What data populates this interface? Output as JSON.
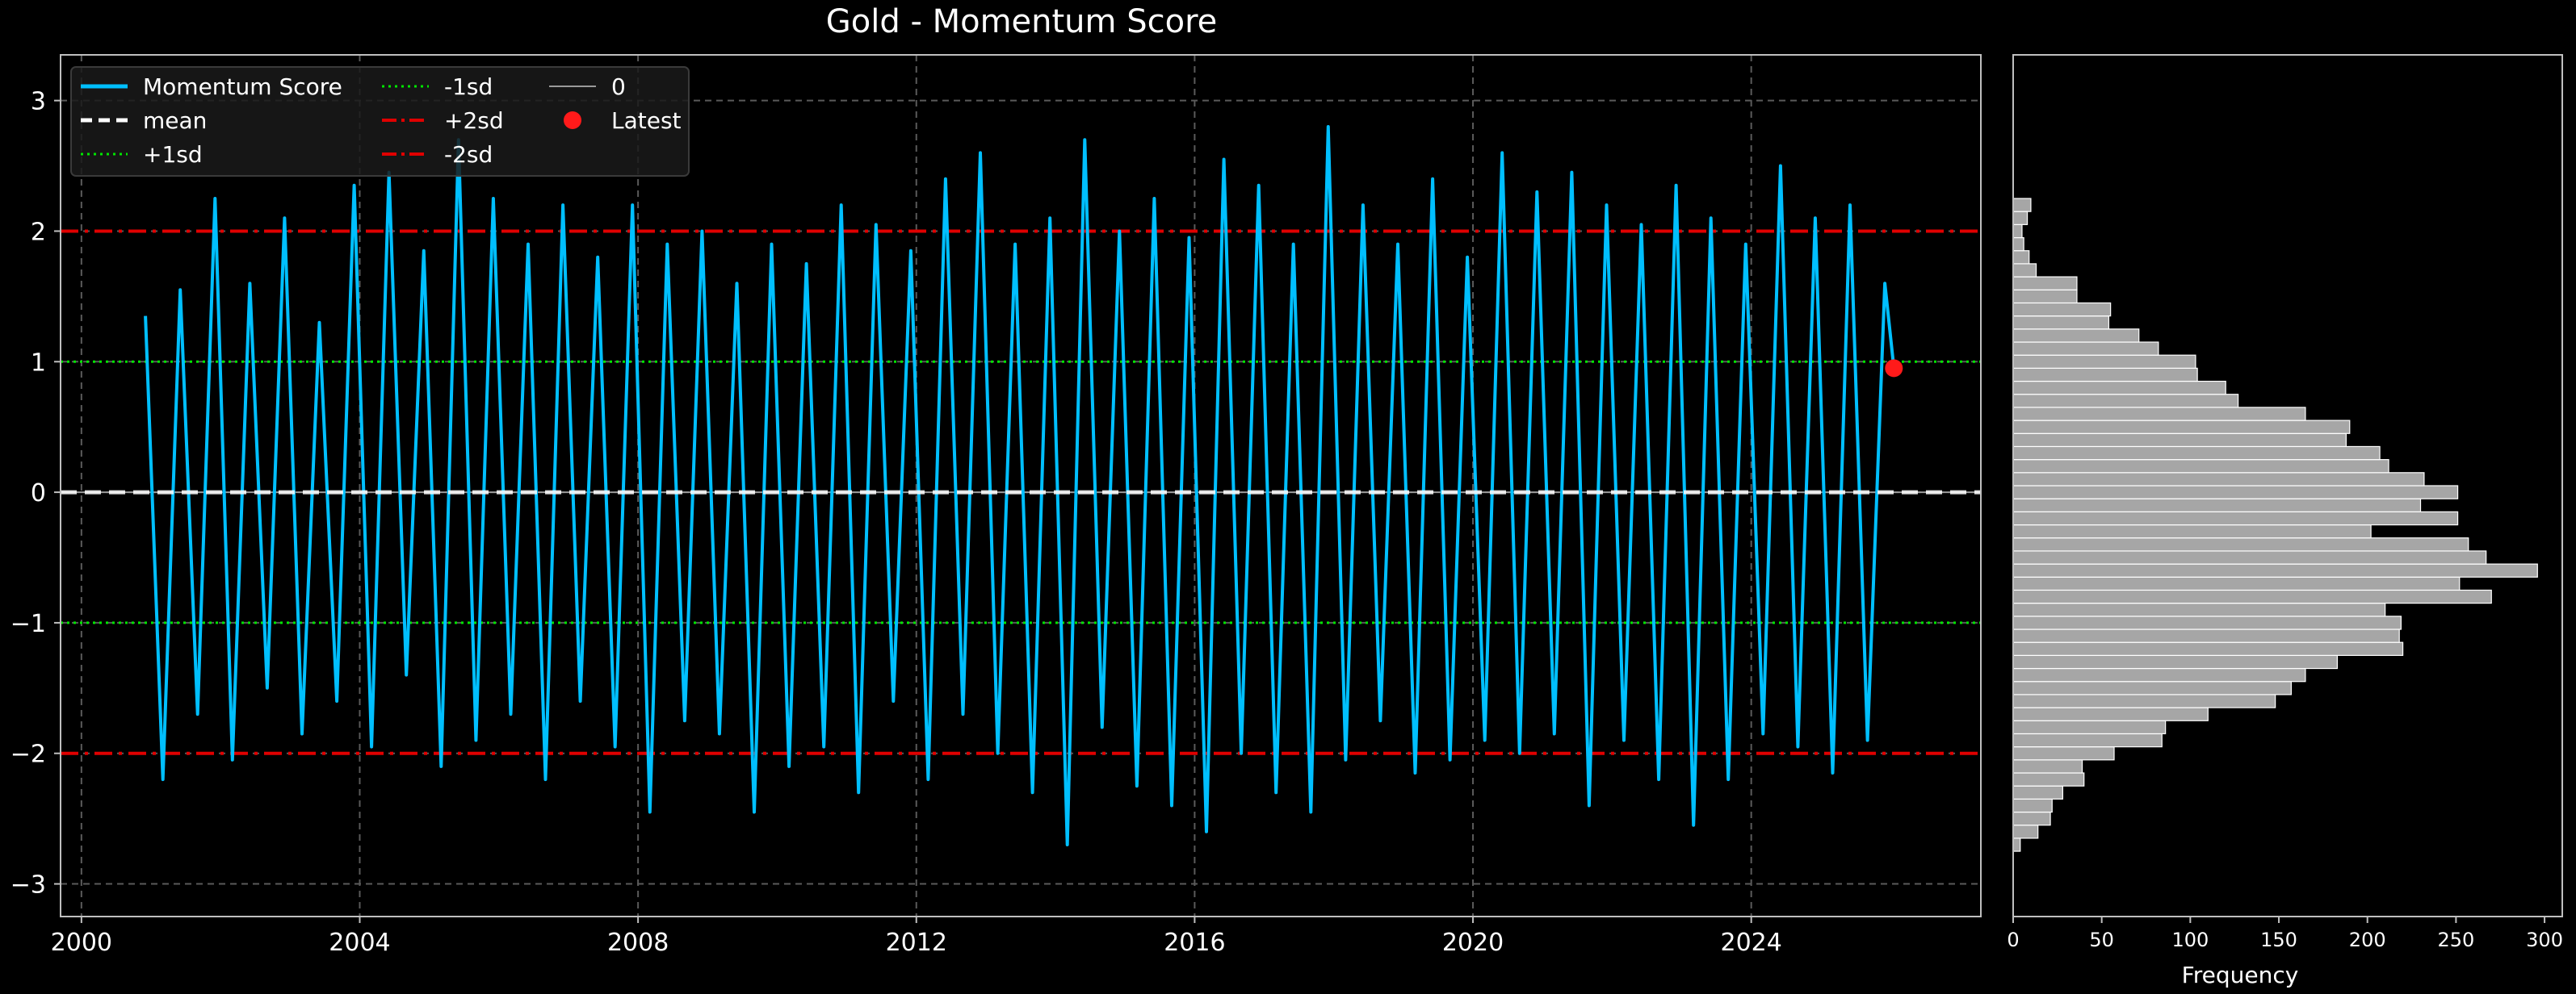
{
  "chart_data": [
    {
      "type": "line",
      "title": "Gold - Momentum Score",
      "xlabel": "",
      "ylabel": "",
      "xlim": [
        1999.7,
        2027.3
      ],
      "ylim": [
        -3.25,
        3.35
      ],
      "x_ticks": [
        2000,
        2004,
        2008,
        2012,
        2016,
        2020,
        2024
      ],
      "x_tick_labels": [
        "2000",
        "2004",
        "2008",
        "2012",
        "2016",
        "2020",
        "2024"
      ],
      "y_ticks": [
        -3,
        -2,
        -1,
        0,
        1,
        2,
        3
      ],
      "y_tick_labels": [
        "−3",
        "−2",
        "−1",
        "0",
        "1",
        "2",
        "3"
      ],
      "grid": true,
      "legend_position": "top-left",
      "legend": [
        "Momentum Score",
        "mean",
        "+1sd",
        "-1sd",
        "+2sd",
        "-2sd",
        "0",
        "Latest"
      ],
      "series": [
        {
          "name": "Momentum Score",
          "color": "#00bfff",
          "x": [
            2000.92,
            2001.17,
            2001.42,
            2001.67,
            2001.92,
            2002.17,
            2002.42,
            2002.67,
            2002.92,
            2003.17,
            2003.42,
            2003.67,
            2003.92,
            2004.17,
            2004.42,
            2004.67,
            2004.92,
            2005.17,
            2005.42,
            2005.67,
            2005.92,
            2006.17,
            2006.42,
            2006.67,
            2006.92,
            2007.17,
            2007.42,
            2007.67,
            2007.92,
            2008.17,
            2008.42,
            2008.67,
            2008.92,
            2009.17,
            2009.42,
            2009.67,
            2009.92,
            2010.17,
            2010.42,
            2010.67,
            2010.92,
            2011.17,
            2011.42,
            2011.67,
            2011.92,
            2012.17,
            2012.42,
            2012.67,
            2012.92,
            2013.17,
            2013.42,
            2013.67,
            2013.92,
            2014.17,
            2014.42,
            2014.67,
            2014.92,
            2015.17,
            2015.42,
            2015.67,
            2015.92,
            2016.17,
            2016.42,
            2016.67,
            2016.92,
            2017.17,
            2017.42,
            2017.67,
            2017.92,
            2018.17,
            2018.42,
            2018.67,
            2018.92,
            2019.17,
            2019.42,
            2019.67,
            2019.92,
            2020.17,
            2020.42,
            2020.67,
            2020.92,
            2021.17,
            2021.42,
            2021.67,
            2021.92,
            2022.17,
            2022.42,
            2022.67,
            2022.92,
            2023.17,
            2023.42,
            2023.67,
            2023.92,
            2024.17,
            2024.42,
            2024.67,
            2024.92,
            2025.17,
            2025.42,
            2025.67,
            2025.92,
            2026.05
          ],
          "y": [
            1.35,
            -2.2,
            1.55,
            -1.7,
            2.25,
            -2.05,
            1.6,
            -1.5,
            2.1,
            -1.85,
            1.3,
            -1.6,
            2.35,
            -1.95,
            2.45,
            -1.4,
            1.85,
            -2.1,
            2.7,
            -1.9,
            2.25,
            -1.7,
            1.9,
            -2.2,
            2.2,
            -1.6,
            1.8,
            -1.95,
            2.2,
            -2.45,
            1.9,
            -1.75,
            2.0,
            -1.85,
            1.6,
            -2.45,
            1.9,
            -2.1,
            1.75,
            -1.95,
            2.2,
            -2.3,
            2.05,
            -1.6,
            1.85,
            -2.2,
            2.4,
            -1.7,
            2.6,
            -2.0,
            1.9,
            -2.3,
            2.1,
            -2.7,
            2.7,
            -1.8,
            2.0,
            -2.25,
            2.25,
            -2.4,
            1.95,
            -2.6,
            2.55,
            -2.0,
            2.35,
            -2.3,
            1.9,
            -2.45,
            2.8,
            -2.05,
            2.2,
            -1.75,
            1.9,
            -2.15,
            2.4,
            -2.05,
            1.8,
            -1.9,
            2.6,
            -2.0,
            2.3,
            -1.85,
            2.45,
            -2.4,
            2.2,
            -1.9,
            2.05,
            -2.2,
            2.35,
            -2.55,
            2.1,
            -2.2,
            1.9,
            -1.85,
            2.5,
            -1.95,
            2.1,
            -2.15,
            2.2,
            -1.9,
            1.6,
            0.95
          ]
        }
      ],
      "mean": 0,
      "sd_lines": {
        "+1sd": 1,
        "-1sd": -1,
        "+2sd": 2,
        "-2sd": -2,
        "zero": 0
      },
      "latest": {
        "x": 2026.05,
        "y": 0.95,
        "color": "#ff1a1a"
      },
      "colors": {
        "line": "#00bfff",
        "mean": "#ffffff",
        "sd1": "#00e600",
        "sd2": "#e00000",
        "latest": "#ff1a1a"
      }
    },
    {
      "type": "bar",
      "orientation": "horizontal",
      "xlabel": "Frequency",
      "xlim": [
        0,
        310
      ],
      "x_ticks": [
        0,
        50,
        100,
        150,
        200,
        250,
        300
      ],
      "x_tick_labels": [
        "0",
        "50",
        "100",
        "150",
        "200",
        "250",
        "300"
      ],
      "shares_y_with": "Momentum Score",
      "bin_width": 0.1,
      "bin_start": -2.75,
      "values": [
        4,
        14,
        21,
        22,
        28,
        40,
        39,
        57,
        84,
        86,
        110,
        148,
        157,
        165,
        183,
        220,
        218,
        219,
        210,
        270,
        252,
        296,
        267,
        257,
        202,
        251,
        230,
        251,
        232,
        212,
        207,
        188,
        190,
        165,
        127,
        120,
        104,
        103,
        82,
        71,
        54,
        55,
        36,
        36,
        13,
        9,
        6,
        5,
        8,
        10
      ],
      "color": "#a6a6a6"
    }
  ]
}
